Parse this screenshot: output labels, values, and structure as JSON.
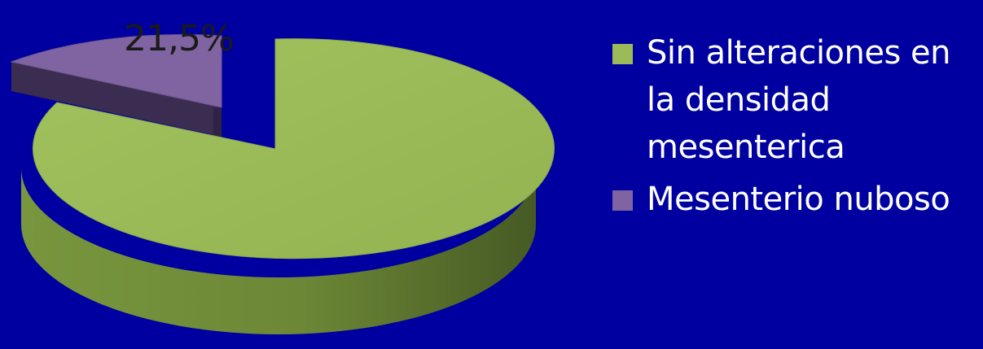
{
  "chart_data": {
    "type": "pie",
    "style": "3d-exploded",
    "slices": [
      {
        "label": "Sin alteraciones en la densidad mesenterica",
        "value": 78.5,
        "color": "#9bbb59",
        "data_label": ""
      },
      {
        "label": "Mesenterio nuboso",
        "value": 21.5,
        "color": "#8064a2",
        "data_label": "21,5%"
      }
    ],
    "legend_position": "right",
    "background": "#0000a0"
  }
}
